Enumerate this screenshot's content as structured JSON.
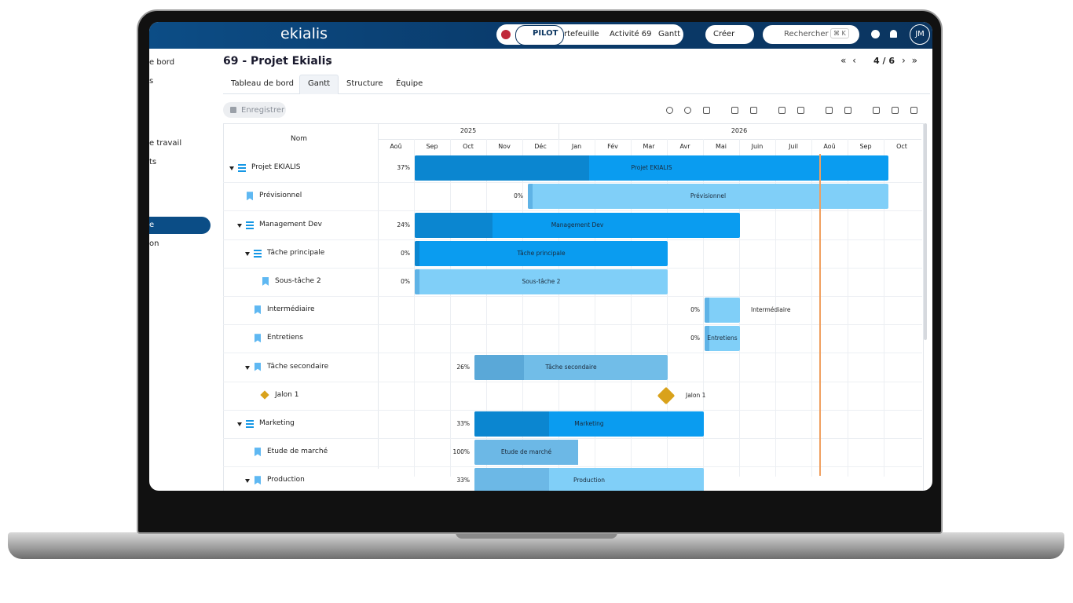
{
  "header": {
    "brand": "ekialis",
    "pilot": "PILOT",
    "breadcrumb": [
      "rtefeuille",
      "Activité 69",
      "Gantt"
    ],
    "create": "Créer",
    "search": "Rechercher",
    "shortcut": "⌘ K",
    "avatar": "JM"
  },
  "sidebar": [
    "e bord",
    "s",
    "e travail",
    "ts",
    "e",
    "on"
  ],
  "page": {
    "title": "69 - Projet Ekialis",
    "pager": "4 / 6",
    "tabs": [
      "Tableau de bord",
      "Gantt",
      "Structure",
      "Équipe"
    ],
    "save": "Enregistrer"
  },
  "gantt": {
    "name_header": "Nom",
    "years": [
      "2025",
      "2026"
    ],
    "months": [
      "Aoû",
      "Sep",
      "Oct",
      "Nov",
      "Déc",
      "Jan",
      "Fév",
      "Mar",
      "Avr",
      "Mai",
      "Juin",
      "Juil",
      "Aoû",
      "Sep",
      "Oct"
    ],
    "rows": [
      {
        "name": "Projet EKIALIS",
        "progress": "37%",
        "bar_label": "Projet EKIALIS"
      },
      {
        "name": "Prévisionnel",
        "progress": "0%",
        "bar_label": "Prévisionnel"
      },
      {
        "name": "Management Dev",
        "progress": "24%",
        "bar_label": "Management Dev"
      },
      {
        "name": "Tâche principale",
        "progress": "0%",
        "bar_label": "Tâche principale"
      },
      {
        "name": "Sous-tâche 2",
        "progress": "0%",
        "bar_label": "Sous-tâche 2"
      },
      {
        "name": "Intermédiaire",
        "progress": "0%",
        "bar_label": "Intermédiaire"
      },
      {
        "name": "Entretiens",
        "progress": "0%",
        "bar_label": "Entretiens"
      },
      {
        "name": "Tâche secondaire",
        "progress": "26%",
        "bar_label": "Tâche secondaire"
      },
      {
        "name": "Jalon 1",
        "bar_label": "Jalon 1"
      },
      {
        "name": "Marketing",
        "progress": "33%",
        "bar_label": "Marketing"
      },
      {
        "name": "Etude de marché",
        "progress": "100%",
        "bar_label": "Etude de marché"
      },
      {
        "name": "Production",
        "progress": "33%",
        "bar_label": "Production"
      }
    ]
  }
}
